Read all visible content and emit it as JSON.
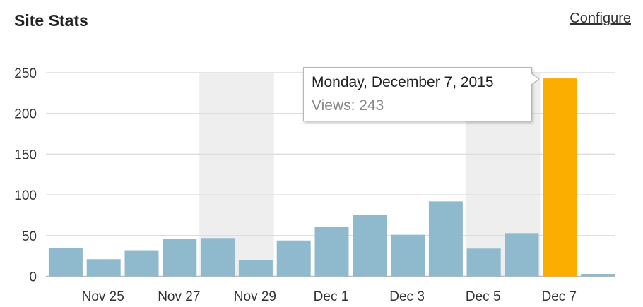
{
  "widget": {
    "title": "Site Stats",
    "configure_label": "Configure"
  },
  "tooltip": {
    "date": "Monday, December 7, 2015",
    "views_label": "Views:",
    "views_value": "243",
    "views_text": "Views: 243"
  },
  "colors": {
    "bar": "#8fbacd",
    "bar_highlight": "#fcae00",
    "weekend_band": "#eeeeee",
    "grid": "#dddddd",
    "axis": "#bbbbbb"
  },
  "chart_data": {
    "type": "bar",
    "title": "",
    "xlabel": "",
    "ylabel": "",
    "ylim": [
      0,
      250
    ],
    "yticks": [
      0,
      50,
      100,
      150,
      200,
      250
    ],
    "grid": true,
    "categories": [
      "Nov 24",
      "Nov 25",
      "Nov 26",
      "Nov 27",
      "Nov 28",
      "Nov 29",
      "Nov 30",
      "Dec 1",
      "Dec 2",
      "Dec 3",
      "Dec 4",
      "Dec 5",
      "Dec 6",
      "Dec 7",
      "Dec 8"
    ],
    "values": [
      35,
      21,
      32,
      46,
      47,
      20,
      44,
      61,
      75,
      51,
      92,
      34,
      53,
      243,
      3
    ],
    "x_tick_labels": [
      "Nov 25",
      "Nov 27",
      "Nov 29",
      "Dec 1",
      "Dec 3",
      "Dec 5",
      "Dec 7"
    ],
    "weekend_ranges": [
      [
        "Nov 28",
        "Nov 29"
      ],
      [
        "Dec 5",
        "Dec 6"
      ]
    ],
    "highlighted_category": "Dec 7"
  }
}
